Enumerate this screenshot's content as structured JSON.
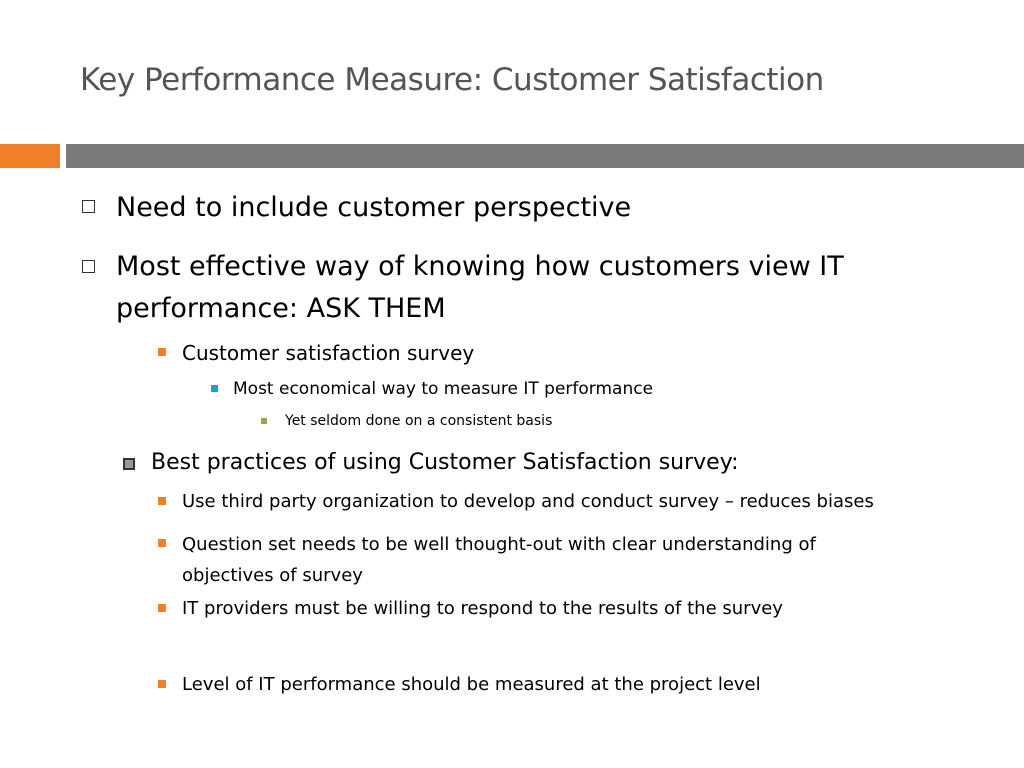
{
  "title": "Key Performance Measure: Customer Satisfaction",
  "bullets": [
    "Need to include customer perspective",
    "Most effective way of knowing how customers view IT performance: ASK THEM",
    "Customer satisfaction survey",
    "Most economical way to measure IT performance",
    "Yet seldom done on a consistent basis",
    "Best practices of using Customer Satisfaction survey:",
    "Use third party organization to develop and conduct survey – reduces biases",
    "Question set needs to be well thought-out with clear understanding of objectives of survey",
    "IT providers must be willing to respond to the results of the survey",
    "Level of IT performance should be measured at the project level"
  ]
}
